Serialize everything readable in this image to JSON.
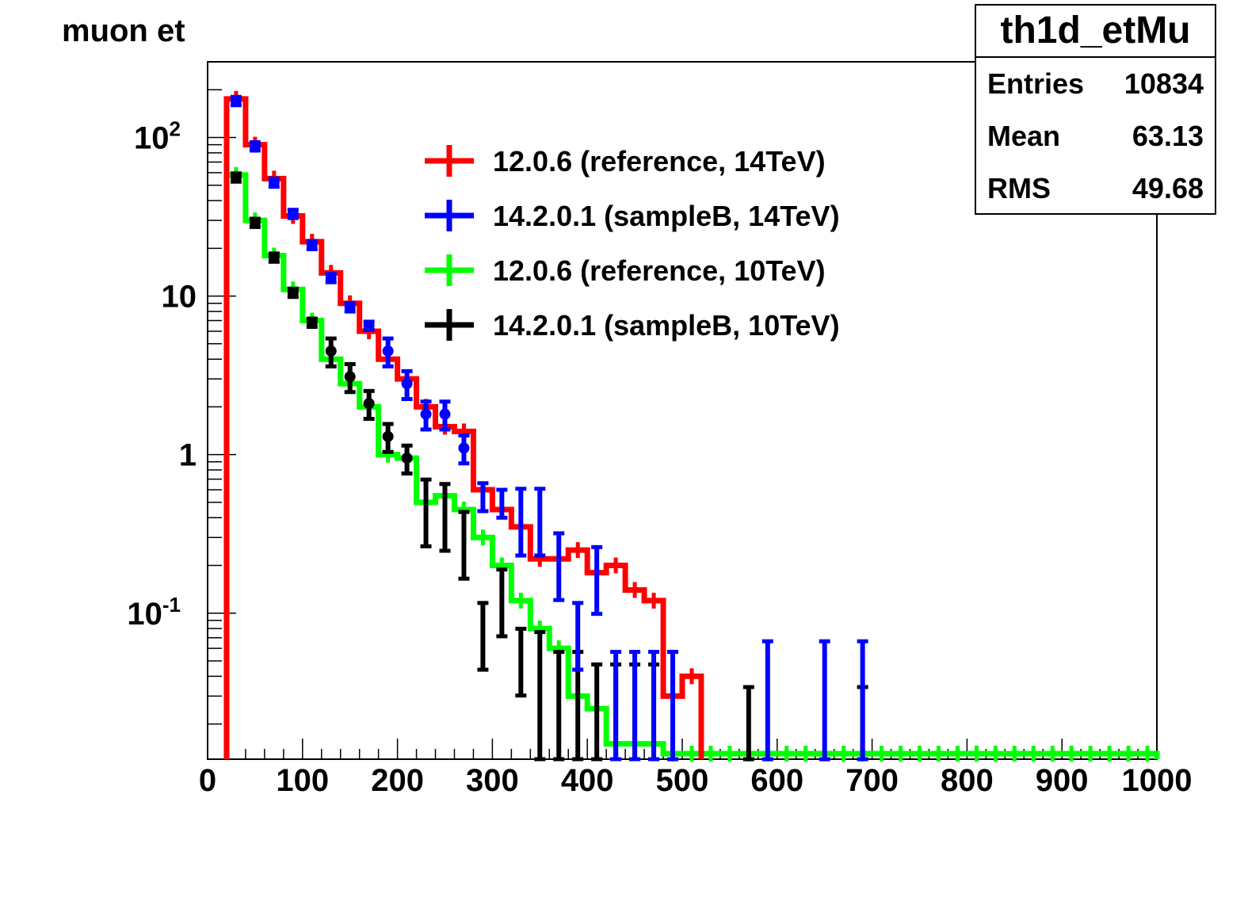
{
  "chart_data": {
    "type": "line",
    "title": "muon et",
    "xlabel": "",
    "ylabel": "",
    "xlim": [
      0,
      1000
    ],
    "ylim": [
      0.012,
      300
    ],
    "ylog": true,
    "grid": false,
    "legend_position": "top-center",
    "x_tick_labels": [
      "0",
      "100",
      "200",
      "300",
      "400",
      "500",
      "600",
      "700",
      "800",
      "900",
      "1000"
    ],
    "y_tick_labels": [
      {
        "value": 0.1,
        "base": "10",
        "exp": "-1"
      },
      {
        "value": 1,
        "base": "1",
        "exp": ""
      },
      {
        "value": 10,
        "base": "10",
        "exp": ""
      },
      {
        "value": 100,
        "base": "10",
        "exp": "2"
      }
    ],
    "bin_width": 20,
    "series": [
      {
        "name": "12.0.6 (reference, 14TeV)",
        "color": "#ff0000",
        "style": "step",
        "x": [
          30,
          50,
          70,
          90,
          110,
          130,
          150,
          170,
          190,
          210,
          230,
          250,
          270,
          290,
          310,
          330,
          350,
          370,
          390,
          410,
          430,
          450,
          470,
          490,
          510
        ],
        "y": [
          175,
          90,
          55,
          32,
          22,
          14,
          9,
          6,
          4,
          3,
          2,
          1.5,
          1.4,
          0.6,
          0.45,
          0.35,
          0.22,
          0.22,
          0.25,
          0.18,
          0.2,
          0.14,
          0.12,
          0.03,
          0.04
        ]
      },
      {
        "name": "14.2.0.1 (sampleB, 14TeV)",
        "color": "#0000ff",
        "style": "markers",
        "x": [
          30,
          50,
          70,
          90,
          110,
          130,
          150,
          170,
          190,
          210,
          230,
          250,
          270,
          290,
          310,
          330,
          350,
          370,
          390,
          410,
          430,
          450,
          470,
          490,
          590,
          650,
          690
        ],
        "y": [
          170,
          88,
          52,
          33,
          21,
          13,
          8.5,
          6.5,
          4.5,
          2.8,
          1.8,
          1.8,
          1.1,
          0.55,
          0.5,
          0.42,
          0.42,
          0.22,
          0.08,
          0.18,
          0.03,
          0.03,
          0.03,
          0.03,
          0.035,
          0.035,
          0.035
        ]
      },
      {
        "name": "12.0.6 (reference, 10TeV)",
        "color": "#00ff00",
        "style": "step",
        "x": [
          30,
          50,
          70,
          90,
          110,
          130,
          150,
          170,
          190,
          210,
          230,
          250,
          270,
          290,
          310,
          330,
          350,
          370,
          390,
          410,
          430,
          450,
          470,
          490,
          510,
          530,
          550,
          570,
          590,
          610,
          630,
          650,
          670,
          690,
          710,
          730,
          750,
          770,
          790,
          810,
          830,
          850,
          870,
          890,
          910,
          930,
          950,
          970,
          990
        ],
        "y": [
          58,
          30,
          18,
          11,
          7,
          4,
          2.8,
          2,
          1,
          0.95,
          0.5,
          0.55,
          0.45,
          0.3,
          0.2,
          0.12,
          0.08,
          0.06,
          0.03,
          0.025,
          0.015,
          0.015,
          0.015,
          0.013,
          0.013,
          0.013,
          0.013,
          0.013,
          0.013,
          0.013,
          0.013,
          0.013,
          0.013,
          0.013,
          0.013,
          0.013,
          0.013,
          0.013,
          0.013,
          0.013,
          0.013,
          0.013,
          0.013,
          0.013,
          0.013,
          0.013,
          0.013,
          0.013,
          0.013
        ]
      },
      {
        "name": "14.2.0.1 (sampleB, 10TeV)",
        "color": "#000000",
        "style": "markers",
        "x": [
          30,
          50,
          70,
          90,
          110,
          130,
          150,
          170,
          190,
          210,
          230,
          250,
          270,
          290,
          310,
          330,
          350,
          370,
          390,
          410,
          430,
          450,
          470,
          490,
          570,
          690
        ],
        "y": [
          56,
          29,
          17.5,
          10.5,
          6.8,
          4.5,
          3.1,
          2.1,
          1.3,
          0.95,
          0.48,
          0.45,
          0.3,
          0.08,
          0.13,
          0.055,
          0.04,
          0.03,
          0.03,
          0.025,
          0.025,
          0.025,
          0.025,
          0.03,
          0.018,
          0.018
        ]
      }
    ]
  },
  "stats": {
    "title": "th1d_etMu",
    "rows": [
      {
        "label": "Entries",
        "value": "10834"
      },
      {
        "label": "Mean",
        "value": "63.13"
      },
      {
        "label": "RMS",
        "value": "49.68"
      }
    ]
  }
}
